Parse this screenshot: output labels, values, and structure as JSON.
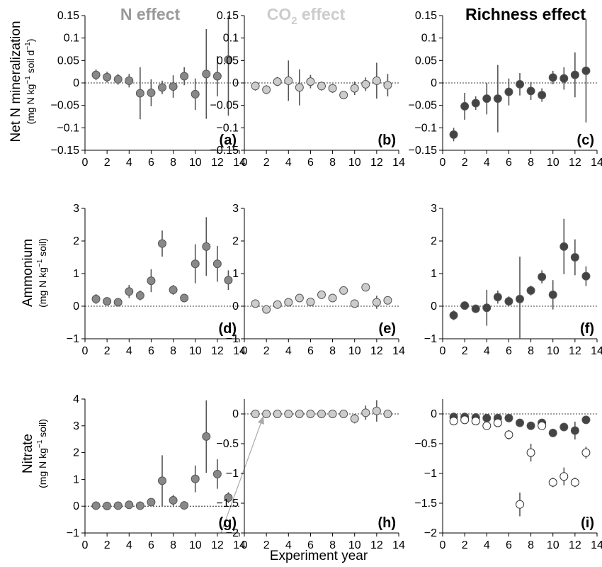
{
  "figure": {
    "column_titles": [
      {
        "main": "N effect",
        "sub": "",
        "after": "",
        "color": "#999999"
      },
      {
        "main": "CO",
        "sub": "2",
        "after": " effect",
        "color": "#cccccc"
      },
      {
        "main": "Richness effect",
        "sub": "",
        "after": "",
        "color": "#000000"
      }
    ],
    "row_labels": [
      {
        "main": "Net N mineralization",
        "unit_pre": "(mg N kg",
        "unit_sup": "−1",
        "unit_mid": " soil d",
        "unit_sup2": "−1",
        "unit_post": ")"
      },
      {
        "main": "Ammonium",
        "unit_pre": "(mg N kg",
        "unit_sup": "−1",
        "unit_mid": " soil)",
        "unit_sup2": "",
        "unit_post": ""
      },
      {
        "main": "Nitrate",
        "unit_pre": "(mg N kg",
        "unit_sup": "−1",
        "unit_mid": " soil)",
        "unit_sup2": "",
        "unit_post": ""
      }
    ],
    "xlabel": "Experiment year"
  },
  "chart_data": [
    {
      "type": "scatter",
      "panel": "(a)",
      "xlim": [
        0,
        14
      ],
      "ylim": [
        -0.15,
        0.15
      ],
      "yticks": [
        -0.15,
        -0.1,
        -0.05,
        0,
        0.05,
        0.1,
        0.15
      ],
      "ytick_labels": [
        "−0.15",
        "−0.1",
        "−0.05",
        "0",
        "0.05",
        "0.1",
        "0.15"
      ],
      "xticks": [
        0,
        2,
        4,
        6,
        8,
        10,
        12,
        14
      ],
      "xtick_labels": [
        "0",
        "2",
        "4",
        "6",
        "8",
        "10",
        "12",
        "14"
      ],
      "series": [
        {
          "fill": "#888888",
          "open": false,
          "x": [
            1,
            2,
            3,
            4,
            5,
            6,
            7,
            8,
            9,
            10,
            11,
            12,
            13
          ],
          "y": [
            0.018,
            0.013,
            0.008,
            0.005,
            -0.023,
            -0.022,
            -0.01,
            -0.008,
            0.015,
            -0.025,
            0.02,
            0.015,
            0.052
          ],
          "err": [
            0.012,
            0.012,
            0.012,
            0.015,
            0.058,
            0.03,
            0.015,
            0.025,
            0.02,
            0.035,
            0.1,
            0.045,
            0.125
          ]
        }
      ]
    },
    {
      "type": "scatter",
      "panel": "(b)",
      "xlim": [
        0,
        14
      ],
      "ylim": [
        -0.15,
        0.15
      ],
      "yticks": [
        -0.15,
        -0.1,
        -0.05,
        0,
        0.05,
        0.1,
        0.15
      ],
      "ytick_labels": [
        "−0.15",
        "−0.1",
        "−0.05",
        "0",
        "0.05",
        "0.1",
        "0.15"
      ],
      "xticks": [
        0,
        2,
        4,
        6,
        8,
        10,
        12,
        14
      ],
      "xtick_labels": [
        "0",
        "2",
        "4",
        "6",
        "8",
        "10",
        "12",
        "14"
      ],
      "series": [
        {
          "fill": "#cccccc",
          "open": false,
          "x": [
            1,
            2,
            3,
            4,
            5,
            6,
            7,
            8,
            9,
            10,
            11,
            12,
            13
          ],
          "y": [
            -0.007,
            -0.015,
            0.003,
            0.005,
            -0.01,
            0.003,
            -0.007,
            -0.012,
            -0.027,
            -0.012,
            -0.003,
            0.005,
            -0.005
          ],
          "err": [
            0.01,
            0.01,
            0.01,
            0.045,
            0.04,
            0.015,
            0.01,
            0.01,
            0.008,
            0.015,
            0.015,
            0.04,
            0.025
          ]
        }
      ]
    },
    {
      "type": "scatter",
      "panel": "(c)",
      "xlim": [
        0,
        14
      ],
      "ylim": [
        -0.15,
        0.15
      ],
      "yticks": [
        -0.15,
        -0.1,
        -0.05,
        0,
        0.05,
        0.1,
        0.15
      ],
      "ytick_labels": [
        "−0.15",
        "−0.1",
        "−0.05",
        "0",
        "0.05",
        "0.1",
        "0.15"
      ],
      "xticks": [
        0,
        2,
        4,
        6,
        8,
        10,
        12,
        14
      ],
      "xtick_labels": [
        "0",
        "2",
        "4",
        "6",
        "8",
        "10",
        "12",
        "14"
      ],
      "series": [
        {
          "fill": "#444444",
          "open": false,
          "x": [
            1,
            2,
            3,
            4,
            5,
            6,
            7,
            8,
            9,
            10,
            11,
            12,
            13
          ],
          "y": [
            -0.115,
            -0.052,
            -0.045,
            -0.035,
            -0.035,
            -0.02,
            -0.003,
            -0.018,
            -0.027,
            0.012,
            0.01,
            0.018,
            0.027
          ],
          "err": [
            0.015,
            0.03,
            0.015,
            0.035,
            0.075,
            0.03,
            0.025,
            0.02,
            0.015,
            0.015,
            0.025,
            0.05,
            0.115
          ]
        }
      ]
    },
    {
      "type": "scatter",
      "panel": "(d)",
      "xlim": [
        0,
        14
      ],
      "ylim": [
        -1,
        3
      ],
      "yticks": [
        -1,
        0,
        1,
        2,
        3
      ],
      "ytick_labels": [
        "−1",
        "0",
        "1",
        "2",
        "3"
      ],
      "xticks": [
        0,
        2,
        4,
        6,
        8,
        10,
        12,
        14
      ],
      "xtick_labels": [
        "0",
        "2",
        "4",
        "6",
        "8",
        "10",
        "12",
        "14"
      ],
      "series": [
        {
          "fill": "#888888",
          "open": false,
          "x": [
            1,
            2,
            3,
            4,
            5,
            6,
            7,
            8,
            9,
            10,
            11,
            12,
            13
          ],
          "y": [
            0.22,
            0.15,
            0.12,
            0.45,
            0.33,
            0.78,
            1.92,
            0.5,
            0.25,
            1.3,
            1.83,
            1.3,
            0.8
          ],
          "err": [
            0.15,
            0.08,
            0.05,
            0.2,
            0.15,
            0.35,
            0.4,
            0.15,
            0.05,
            0.6,
            0.9,
            0.55,
            0.3
          ]
        }
      ]
    },
    {
      "type": "scatter",
      "panel": "(e)",
      "xlim": [
        0,
        14
      ],
      "ylim": [
        -1,
        3
      ],
      "yticks": [
        -1,
        0,
        1,
        2,
        3
      ],
      "ytick_labels": [
        "−1",
        "0",
        "1",
        "2",
        "3"
      ],
      "xticks": [
        0,
        2,
        4,
        6,
        8,
        10,
        12,
        14
      ],
      "xtick_labels": [
        "0",
        "2",
        "4",
        "6",
        "8",
        "10",
        "12",
        "14"
      ],
      "series": [
        {
          "fill": "#cccccc",
          "open": false,
          "x": [
            1,
            2,
            3,
            4,
            5,
            6,
            7,
            8,
            9,
            10,
            11,
            12,
            13
          ],
          "y": [
            0.08,
            -0.1,
            0.05,
            0.12,
            0.25,
            0.13,
            0.35,
            0.25,
            0.48,
            0.08,
            0.58,
            0.12,
            0.18
          ],
          "err": [
            0.05,
            0.05,
            0.05,
            0.05,
            0.05,
            0.05,
            0.05,
            0.05,
            0.05,
            0.05,
            0.05,
            0.2,
            0.05
          ]
        }
      ]
    },
    {
      "type": "scatter",
      "panel": "(f)",
      "xlim": [
        0,
        14
      ],
      "ylim": [
        -1,
        3
      ],
      "yticks": [
        -1,
        0,
        1,
        2,
        3
      ],
      "ytick_labels": [
        "−1",
        "0",
        "1",
        "2",
        "3"
      ],
      "xticks": [
        0,
        2,
        4,
        6,
        8,
        10,
        12,
        14
      ],
      "xtick_labels": [
        "0",
        "2",
        "4",
        "6",
        "8",
        "10",
        "12",
        "14"
      ],
      "series": [
        {
          "fill": "#444444",
          "open": false,
          "x": [
            1,
            2,
            3,
            4,
            5,
            6,
            7,
            8,
            9,
            10,
            11,
            12,
            13
          ],
          "y": [
            -0.28,
            0.02,
            -0.08,
            -0.05,
            0.28,
            0.15,
            0.22,
            0.48,
            0.9,
            0.35,
            1.83,
            1.5,
            0.92
          ],
          "err": [
            0.15,
            0.05,
            0.08,
            0.55,
            0.2,
            0.15,
            1.3,
            0.15,
            0.2,
            0.45,
            0.85,
            0.55,
            0.3
          ]
        }
      ]
    },
    {
      "type": "scatter",
      "panel": "(g)",
      "xlim": [
        0,
        14
      ],
      "ylim": [
        -1,
        4
      ],
      "yticks": [
        -1,
        0,
        1,
        2,
        3,
        4
      ],
      "ytick_labels": [
        "−1",
        "0",
        "1",
        "2",
        "3",
        "4"
      ],
      "xticks": [
        0,
        2,
        4,
        6,
        8,
        10,
        12,
        14
      ],
      "xtick_labels": [
        "0",
        "2",
        "4",
        "6",
        "8",
        "10",
        "12",
        "14"
      ],
      "series": [
        {
          "fill": "#888888",
          "open": false,
          "x": [
            1,
            2,
            3,
            4,
            5,
            6,
            7,
            8,
            9,
            10,
            11,
            12,
            13
          ],
          "y": [
            0.02,
            0.01,
            0.02,
            0.05,
            0.02,
            0.15,
            0.95,
            0.22,
            0.03,
            1.02,
            2.6,
            1.2,
            0.32
          ],
          "err": [
            0.02,
            0.02,
            0.02,
            0.05,
            0.03,
            0.15,
            0.95,
            0.2,
            0.05,
            0.5,
            1.35,
            0.55,
            0.2
          ]
        }
      ]
    },
    {
      "type": "scatter",
      "panel": "(h)",
      "xlim": [
        0,
        14
      ],
      "ylim": [
        -2,
        0.25
      ],
      "yticks": [
        -2,
        -1.5,
        -1,
        -0.5,
        0
      ],
      "ytick_labels": [
        "−2",
        "−1.5",
        "−1",
        "−0.5",
        "0"
      ],
      "xticks": [
        0,
        2,
        4,
        6,
        8,
        10,
        12,
        14
      ],
      "xtick_labels": [
        "0",
        "2",
        "4",
        "6",
        "8",
        "10",
        "12",
        "14"
      ],
      "series": [
        {
          "fill": "#cccccc",
          "open": false,
          "x": [
            1,
            2,
            3,
            4,
            5,
            6,
            7,
            8,
            9,
            10,
            11,
            12,
            13
          ],
          "y": [
            0,
            0,
            0,
            0,
            0,
            0,
            0,
            0,
            0,
            -0.08,
            0.02,
            0.05,
            0
          ],
          "err": [
            0.02,
            0.02,
            0.02,
            0.02,
            0.02,
            0.02,
            0.02,
            0.02,
            0.02,
            0.08,
            0.12,
            0.18,
            0.05
          ]
        }
      ]
    },
    {
      "type": "scatter",
      "panel": "(i)",
      "xlim": [
        0,
        14
      ],
      "ylim": [
        -2,
        0.25
      ],
      "yticks": [
        -2,
        -1.5,
        -1,
        -0.5,
        0
      ],
      "ytick_labels": [
        "−2",
        "−1.5",
        "−1",
        "−0.5",
        "0"
      ],
      "xticks": [
        0,
        2,
        4,
        6,
        8,
        10,
        12,
        14
      ],
      "xtick_labels": [
        "0",
        "2",
        "4",
        "6",
        "8",
        "10",
        "12",
        "14"
      ],
      "series": [
        {
          "fill": "#444444",
          "open": false,
          "x": [
            1,
            2,
            3,
            4,
            5,
            6,
            7,
            8,
            9,
            10,
            11,
            12,
            13
          ],
          "y": [
            -0.05,
            -0.05,
            -0.06,
            -0.07,
            -0.07,
            -0.07,
            -0.15,
            -0.2,
            -0.15,
            -0.32,
            -0.22,
            -0.28,
            -0.1
          ],
          "err": [
            0.02,
            0.02,
            0.02,
            0.02,
            0.02,
            0.02,
            0.03,
            0.03,
            0.03,
            0.05,
            0.05,
            0.15,
            0.05
          ]
        },
        {
          "fill": "#ffffff",
          "open": true,
          "x": [
            1,
            2,
            3,
            4,
            5,
            6,
            7,
            8,
            9,
            10,
            11,
            12,
            13
          ],
          "y": [
            -0.12,
            -0.1,
            -0.12,
            -0.2,
            -0.15,
            -0.35,
            -1.52,
            -0.65,
            -0.2,
            -1.15,
            -1.05,
            -1.15,
            -0.65
          ],
          "err": [
            0.05,
            0.03,
            0.05,
            0.05,
            0.05,
            0.08,
            0.2,
            0.15,
            0.05,
            0.08,
            0.15,
            0.08,
            0.1
          ]
        }
      ]
    }
  ]
}
